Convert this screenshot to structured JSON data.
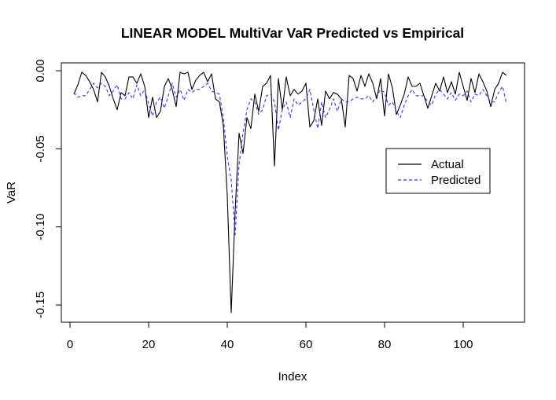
{
  "chart_data": {
    "type": "line",
    "title": "LINEAR MODEL MultiVar VaR Predicted vs Empirical",
    "xlabel": "Index",
    "ylabel": "VaR",
    "xlim": [
      1,
      111
    ],
    "ylim": [
      -0.16,
      0.0
    ],
    "x_ticks": [
      0,
      20,
      40,
      60,
      80,
      100
    ],
    "x_tick_labels": [
      "0",
      "20",
      "40",
      "60",
      "80",
      "100"
    ],
    "y_ticks": [
      0.0,
      -0.05,
      -0.1,
      -0.15
    ],
    "y_tick_labels": [
      "0.00",
      "-0.05",
      "-0.10",
      "-0.15"
    ],
    "legend": {
      "placement": "right",
      "entries": [
        "Actual",
        "Predicted"
      ]
    },
    "colors": {
      "actual": "#000000",
      "predicted": "#3333ee"
    },
    "series": [
      {
        "name": "Actual",
        "style": "solid",
        "values": [
          -0.015,
          -0.009,
          -0.001,
          -0.003,
          -0.007,
          -0.012,
          -0.02,
          -0.001,
          -0.004,
          -0.01,
          -0.018,
          -0.025,
          -0.014,
          -0.016,
          -0.004,
          -0.004,
          -0.008,
          -0.002,
          -0.01,
          -0.03,
          -0.017,
          -0.03,
          -0.026,
          -0.01,
          -0.005,
          -0.012,
          -0.023,
          -0.001,
          -0.002,
          -0.001,
          -0.012,
          -0.006,
          -0.003,
          -0.001,
          -0.007,
          -0.002,
          -0.018,
          -0.02,
          -0.035,
          -0.08,
          -0.155,
          -0.09,
          -0.04,
          -0.053,
          -0.03,
          -0.037,
          -0.015,
          -0.026,
          -0.01,
          -0.008,
          -0.003,
          -0.061,
          -0.005,
          -0.025,
          -0.004,
          -0.016,
          -0.012,
          -0.015,
          -0.013,
          -0.008,
          -0.036,
          -0.032,
          -0.018,
          -0.035,
          -0.013,
          -0.018,
          -0.014,
          -0.015,
          -0.018,
          -0.036,
          -0.003,
          -0.005,
          -0.013,
          -0.003,
          -0.01,
          -0.002,
          -0.008,
          -0.018,
          -0.005,
          -0.029,
          -0.002,
          -0.011,
          -0.028,
          -0.022,
          -0.015,
          -0.004,
          -0.01,
          -0.01,
          -0.008,
          -0.016,
          -0.024,
          -0.016,
          -0.008,
          -0.013,
          -0.004,
          -0.014,
          -0.007,
          -0.015,
          -0.001,
          -0.01,
          -0.019,
          -0.005,
          -0.014,
          -0.002,
          -0.007,
          -0.013,
          -0.023,
          -0.012,
          -0.008,
          -0.001,
          -0.003
        ]
      },
      {
        "name": "Predicted",
        "style": "dashed",
        "values": [
          -0.014,
          -0.017,
          -0.016,
          -0.016,
          -0.012,
          -0.008,
          -0.011,
          -0.008,
          -0.01,
          -0.016,
          -0.013,
          -0.009,
          -0.018,
          -0.018,
          -0.014,
          -0.018,
          -0.009,
          -0.016,
          -0.012,
          -0.021,
          -0.029,
          -0.02,
          -0.017,
          -0.024,
          -0.016,
          -0.008,
          -0.017,
          -0.012,
          -0.019,
          -0.012,
          -0.014,
          -0.012,
          -0.012,
          -0.01,
          -0.008,
          -0.013,
          -0.014,
          -0.015,
          -0.03,
          -0.055,
          -0.07,
          -0.105,
          -0.06,
          -0.04,
          -0.025,
          -0.018,
          -0.02,
          -0.028,
          -0.025,
          -0.016,
          -0.015,
          -0.02,
          -0.038,
          -0.025,
          -0.02,
          -0.03,
          -0.018,
          -0.022,
          -0.02,
          -0.018,
          -0.012,
          -0.025,
          -0.037,
          -0.02,
          -0.03,
          -0.025,
          -0.018,
          -0.026,
          -0.018,
          -0.02,
          -0.02,
          -0.018,
          -0.017,
          -0.018,
          -0.018,
          -0.016,
          -0.02,
          -0.016,
          -0.012,
          -0.014,
          -0.022,
          -0.02,
          -0.026,
          -0.03,
          -0.022,
          -0.016,
          -0.012,
          -0.016,
          -0.016,
          -0.016,
          -0.02,
          -0.022,
          -0.015,
          -0.012,
          -0.015,
          -0.018,
          -0.014,
          -0.019,
          -0.015,
          -0.016,
          -0.013,
          -0.02,
          -0.015,
          -0.016,
          -0.012,
          -0.016,
          -0.02,
          -0.02,
          -0.014,
          -0.01,
          -0.021
        ]
      }
    ]
  }
}
